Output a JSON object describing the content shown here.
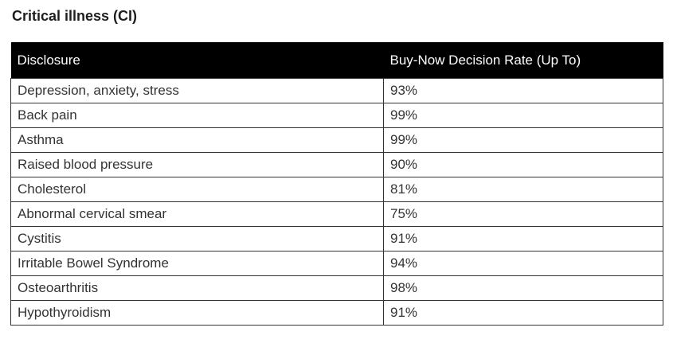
{
  "page_title": "Critical illness (CI)",
  "colors": {
    "header_bg": "#000000",
    "header_text": "#ffffff",
    "body_text": "#333333",
    "border": "#333333",
    "background": "#ffffff"
  },
  "table": {
    "columns": [
      "Disclosure",
      "Buy-Now Decision Rate (Up To)"
    ],
    "rows": [
      {
        "disclosure": "Depression, anxiety, stress",
        "rate": "93%"
      },
      {
        "disclosure": "Back pain",
        "rate": "99%"
      },
      {
        "disclosure": "Asthma",
        "rate": "99%"
      },
      {
        "disclosure": "Raised blood pressure",
        "rate": "90%"
      },
      {
        "disclosure": "Cholesterol",
        "rate": "81%"
      },
      {
        "disclosure": "Abnormal cervical smear",
        "rate": "75%"
      },
      {
        "disclosure": "Cystitis",
        "rate": "91%"
      },
      {
        "disclosure": "Irritable Bowel Syndrome",
        "rate": "94%"
      },
      {
        "disclosure": "Osteoarthritis",
        "rate": "98%"
      },
      {
        "disclosure": "Hypothyroidism",
        "rate": "91%"
      }
    ]
  },
  "chart_data": {
    "type": "table",
    "title": "Critical illness (CI)",
    "columns": [
      "Disclosure",
      "Buy-Now Decision Rate (Up To)"
    ],
    "categories": [
      "Depression, anxiety, stress",
      "Back pain",
      "Asthma",
      "Raised blood pressure",
      "Cholesterol",
      "Abnormal cervical smear",
      "Cystitis",
      "Irritable Bowel Syndrome",
      "Osteoarthritis",
      "Hypothyroidism"
    ],
    "values": [
      93,
      99,
      99,
      90,
      81,
      75,
      91,
      94,
      98,
      91
    ],
    "value_unit": "%"
  }
}
